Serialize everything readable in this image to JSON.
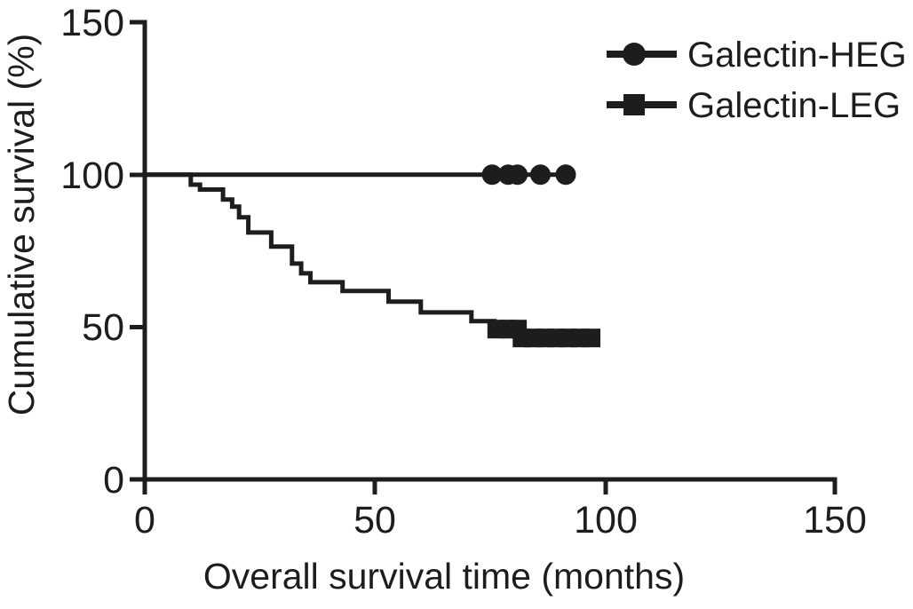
{
  "figure": {
    "background": "#ffffff",
    "ink_color": "#1d1d1d"
  },
  "chart_data": {
    "type": "line",
    "subtype": "kaplan-meier-step-curve",
    "title": "",
    "xlabel": "Overall survival time (months)",
    "ylabel": "Cumulative survival (%)",
    "xlim": [
      0,
      150
    ],
    "ylim": [
      0,
      150
    ],
    "x_ticks": [
      "0",
      "50",
      "100",
      "150"
    ],
    "y_ticks": [
      "0",
      "50",
      "100",
      "150"
    ],
    "grid": false,
    "legend_position": "top-right",
    "series": [
      {
        "name": "Galectin-HEG",
        "marker": "circle",
        "color": "#1d1d1d",
        "steps": [
          [
            0,
            100
          ],
          [
            93,
            100
          ]
        ],
        "censor": [
          {
            "y": 100,
            "x": [
              75.5,
              79,
              81,
              86,
              91.5
            ]
          }
        ]
      },
      {
        "name": "Galectin-LEG",
        "marker": "square",
        "color": "#1d1d1d",
        "steps": [
          [
            0,
            100
          ],
          [
            10,
            100
          ],
          [
            10,
            96.7
          ],
          [
            12,
            96.7
          ],
          [
            12,
            95.1
          ],
          [
            17,
            95.1
          ],
          [
            17,
            91.8
          ],
          [
            19,
            91.8
          ],
          [
            19,
            89.5
          ],
          [
            20.5,
            89.5
          ],
          [
            20.5,
            86
          ],
          [
            22.5,
            86
          ],
          [
            22.5,
            81
          ],
          [
            27.5,
            81
          ],
          [
            27.5,
            76.4
          ],
          [
            32,
            76.4
          ],
          [
            32,
            70.8
          ],
          [
            34,
            70.8
          ],
          [
            34,
            67.6
          ],
          [
            36,
            67.6
          ],
          [
            36,
            64.7
          ],
          [
            43,
            64.7
          ],
          [
            43,
            61.8
          ],
          [
            53,
            61.8
          ],
          [
            53,
            58.3
          ],
          [
            60,
            58.3
          ],
          [
            60,
            54.8
          ],
          [
            71,
            54.8
          ],
          [
            71,
            51.9
          ],
          [
            76,
            51.9
          ],
          [
            76,
            49.3
          ],
          [
            80.5,
            49.3
          ],
          [
            80.5,
            46.4
          ],
          [
            98,
            46.4
          ]
        ],
        "censor": [
          {
            "y": 49.3,
            "x": [
              76.5,
              79,
              81
            ]
          },
          {
            "y": 46.4,
            "x": [
              82,
              84.5,
              87,
              89.5,
              92,
              94.5,
              97
            ]
          }
        ]
      }
    ]
  }
}
